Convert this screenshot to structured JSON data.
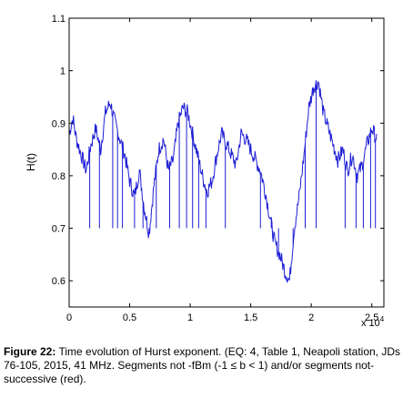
{
  "chart_data": {
    "type": "line",
    "ylabel": "H(t)",
    "xlim": [
      0,
      26000
    ],
    "ylim": [
      0.55,
      1.1
    ],
    "x_ticks": [
      0,
      5000,
      10000,
      15000,
      20000,
      25000
    ],
    "x_tick_labels": [
      "0",
      "0.5",
      "1",
      "1.5",
      "2",
      "2.5"
    ],
    "x_multiplier": "x 10",
    "x_multiplier_exp": "4",
    "y_ticks": [
      0.6,
      0.7,
      0.8,
      0.9,
      1.0,
      1.1
    ],
    "y_tick_labels": [
      "0.6",
      "0.7",
      "0.8",
      "0.9",
      "1",
      "1.1"
    ],
    "grid": false,
    "series_color": "#1f1fd6",
    "series": [
      {
        "x": [
          0,
          300,
          600,
          1000,
          1400,
          1800,
          2200,
          2600,
          3000,
          3400,
          3800,
          4200,
          4600,
          5000,
          5400,
          5800,
          6200,
          6600,
          7000,
          7400,
          7800,
          8200,
          8600,
          9000,
          9400,
          9800,
          10200,
          10600,
          11000,
          11400,
          11800,
          12200,
          12600,
          13000,
          13400,
          13800,
          14200,
          14600,
          15000,
          15400,
          15800,
          16200,
          16600,
          17000,
          17400,
          17800,
          18200,
          18600,
          19000,
          19400,
          19800,
          20200,
          20600,
          21000,
          21400,
          21800,
          22200,
          22600,
          23000,
          23400,
          23800,
          24200,
          24600,
          25000,
          25400
        ],
        "values": [
          0.88,
          0.91,
          0.87,
          0.84,
          0.81,
          0.86,
          0.89,
          0.85,
          0.92,
          0.94,
          0.9,
          0.87,
          0.84,
          0.79,
          0.76,
          0.81,
          0.74,
          0.69,
          0.78,
          0.85,
          0.87,
          0.81,
          0.83,
          0.9,
          0.93,
          0.92,
          0.88,
          0.84,
          0.8,
          0.77,
          0.79,
          0.84,
          0.88,
          0.86,
          0.84,
          0.82,
          0.88,
          0.87,
          0.85,
          0.83,
          0.81,
          0.77,
          0.72,
          0.67,
          0.65,
          0.62,
          0.6,
          0.7,
          0.76,
          0.84,
          0.93,
          0.97,
          0.98,
          0.92,
          0.89,
          0.86,
          0.83,
          0.85,
          0.81,
          0.84,
          0.8,
          0.82,
          0.86,
          0.89,
          0.87
        ]
      }
    ],
    "dropouts_x": [
      1700,
      2500,
      3600,
      4000,
      4400,
      5400,
      6100,
      6600,
      7200,
      8300,
      9100,
      9700,
      10200,
      10700,
      11300,
      12900,
      15800,
      16700,
      17300,
      18500,
      19500,
      20400,
      22800,
      23700,
      24300,
      24900,
      25300
    ]
  },
  "caption": {
    "label": "Figure 22:",
    "text": " Time evolution of Hurst exponent. (EQ: 4, Table 1, Neapoli station, JDs 76-105, 2015, 41 MHz. Segments not -fBm (-1 ≤ b < 1) and/or segments not-successive (red)."
  }
}
